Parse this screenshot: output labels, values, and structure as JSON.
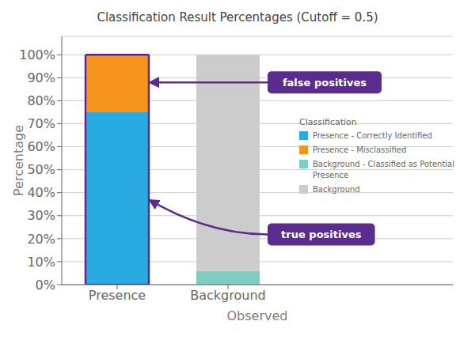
{
  "chart_data": {
    "type": "bar",
    "stacked": true,
    "title": "Classification Result Percentages (Cutoff = 0.5)",
    "xlabel": "Observed",
    "ylabel": "Percentage",
    "categories": [
      "Presence",
      "Background"
    ],
    "series": [
      {
        "name": "Presence - Correctly Identified",
        "color": "#29ABE2",
        "values": [
          75,
          0
        ]
      },
      {
        "name": "Presence - Misclassified",
        "color": "#F7941D",
        "values": [
          25,
          0
        ]
      },
      {
        "name": "Background - Classified as Potential Presence",
        "color": "#7ECDC0",
        "values": [
          0,
          6
        ]
      },
      {
        "name": "Background",
        "color": "#CCCCCC",
        "values": [
          0,
          94
        ]
      }
    ],
    "ylim": [
      0,
      108
    ],
    "yticks": [
      {
        "value": 0,
        "label": "0%"
      },
      {
        "value": 10,
        "label": "10%"
      },
      {
        "value": 20,
        "label": "20%"
      },
      {
        "value": 30,
        "label": "30%"
      },
      {
        "value": 40,
        "label": "40%"
      },
      {
        "value": 50,
        "label": "50%"
      },
      {
        "value": 60,
        "label": "60%"
      },
      {
        "value": 70,
        "label": "70%"
      },
      {
        "value": 80,
        "label": "80%"
      },
      {
        "value": 90,
        "label": "90%"
      },
      {
        "value": 100,
        "label": "100%"
      }
    ],
    "grid": true,
    "legend": "right",
    "legend_title": "Classification",
    "highlight": {
      "category": "Presence",
      "color": "#5B2C8D"
    },
    "annotations": [
      {
        "text": "false positives",
        "x": "Presence",
        "y": 88,
        "color": "#5B2C8D"
      },
      {
        "text": "true positives",
        "x": "Presence",
        "y": 37,
        "color": "#5B2C8D"
      }
    ]
  }
}
